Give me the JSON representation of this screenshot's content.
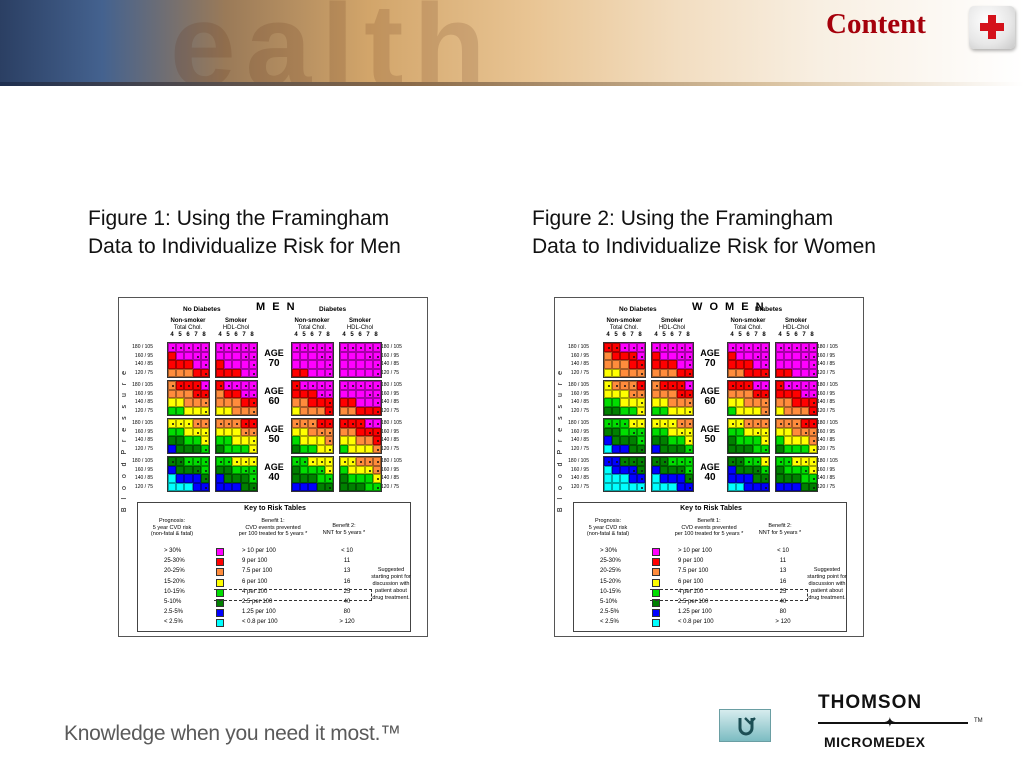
{
  "header": {
    "title": "Content",
    "home_icon": "red-cross-icon",
    "title_color": "#a5000b"
  },
  "captions": {
    "figure1": "Figure 1: Using the Framingham\nData to Individualize Risk for Men",
    "figure2": "Figure 2: Using the Framingham\nData to Individualize Risk for Women"
  },
  "figures": [
    {
      "id": "men",
      "sex_label": "M E N",
      "group_left": "No Diabetes",
      "group_right": "Diabetes",
      "non_smoker": "Non-smoker",
      "smoker": "Smoker",
      "total_chol": "Total Chol.",
      "hdl_chol": "HDL-Chol",
      "chol_levels": [
        "4",
        "5",
        "6",
        "7",
        "8"
      ],
      "bp_levels": [
        "180 / 105",
        "160 / 95",
        "140 / 85",
        "120 / 75"
      ],
      "bp_axis_label": "B l o o d   P r e s s u r e",
      "age_label": "AGE",
      "ages": [
        "70",
        "60",
        "50",
        "40"
      ]
    },
    {
      "id": "women",
      "sex_label": "W O M E N",
      "group_left": "No Diabetes",
      "group_right": "Diabetes",
      "non_smoker": "Non-smoker",
      "smoker": "Smoker",
      "total_chol": "Total Chol.",
      "hdl_chol": "HDL-Chol",
      "chol_levels": [
        "4",
        "5",
        "6",
        "7",
        "8"
      ],
      "bp_levels": [
        "180 / 105",
        "160 / 95",
        "140 / 85",
        "120 / 75"
      ],
      "bp_axis_label": "B l o o d   P r e s s u r e",
      "age_label": "AGE",
      "ages": [
        "70",
        "60",
        "50",
        "40"
      ]
    }
  ],
  "key": {
    "title": "Key to Risk Tables",
    "prognosis_header": "Prognosis:\n5 year CVD risk\n(non-fatal & fatal)",
    "benefit1_header": "Benefit 1:\nCVD events prevented\nper 100 treated for 5 years *",
    "benefit2_header": "Benefit 2:\nNNT for 5 years *",
    "note": "Suggested starting point for discussion with patient about drug treatment.",
    "rows": [
      {
        "risk": "> 30%",
        "color": "#ff00ff",
        "benefit1": "> 10 per 100",
        "nnt": "< 10"
      },
      {
        "risk": "25-30%",
        "color": "#ff0000",
        "benefit1": "9 per 100",
        "nnt": "11"
      },
      {
        "risk": "20-25%",
        "color": "#ff8c3c",
        "benefit1": "7.5 per 100",
        "nnt": "13"
      },
      {
        "risk": "15-20%",
        "color": "#ffff00",
        "benefit1": "6 per 100",
        "nnt": "16"
      },
      {
        "risk": "10-15%",
        "color": "#00dd00",
        "benefit1": "4 per 100",
        "nnt": "25"
      },
      {
        "risk": "5-10%",
        "color": "#008000",
        "benefit1": "2.5 per 100",
        "nnt": "40"
      },
      {
        "risk": "2.5-5%",
        "color": "#0000ff",
        "benefit1": "1.25 per 100",
        "nnt": "80"
      },
      {
        "risk": "< 2.5%",
        "color": "#00ffff",
        "benefit1": "< 0.8 per 100",
        "nnt": "> 120"
      }
    ]
  },
  "footer": {
    "tagline": "Knowledge when you need it most.™",
    "return_icon": "return-arrow-icon",
    "logo_top": "THOMSON",
    "logo_bottom": "MICROMEDEX",
    "logo_tm": "TM"
  }
}
